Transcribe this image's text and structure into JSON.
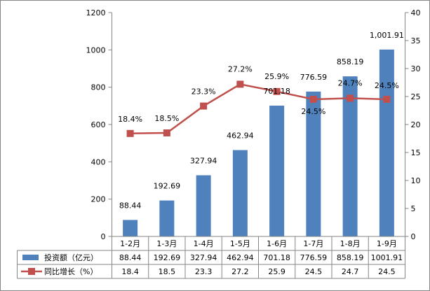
{
  "chart_data": {
    "type": "bar+line",
    "categories": [
      "1-2月",
      "1-3月",
      "1-4月",
      "1-5月",
      "1-6月",
      "1-7月",
      "1-8月",
      "1-9月"
    ],
    "series": [
      {
        "name": "投资额（亿元）",
        "kind": "bar",
        "axis": "left",
        "color": "#4F81BD",
        "values": [
          88.44,
          192.69,
          327.94,
          462.94,
          701.18,
          776.59,
          858.19,
          1001.91
        ],
        "labels": [
          "88.44",
          "192.69",
          "327.94",
          "462.94",
          "701.18",
          "776.59",
          "858.19",
          "1,001.91"
        ],
        "table_values": [
          "88.44",
          "192.69",
          "327.94",
          "462.94",
          "701.18",
          "776.59",
          "858.19",
          "1001.91"
        ]
      },
      {
        "name": "同比增长（%）",
        "kind": "line",
        "axis": "right",
        "color": "#C0504D",
        "values": [
          18.4,
          18.5,
          23.3,
          27.2,
          25.9,
          24.5,
          24.7,
          24.5
        ],
        "labels": [
          "18.4%",
          "18.5%",
          "23.3%",
          "27.2%",
          "25.9%",
          "24.5%",
          "24.7%",
          "24.5%"
        ],
        "table_values": [
          "18.4",
          "18.5",
          "23.3",
          "27.2",
          "25.9",
          "24.5",
          "24.7",
          "24.5"
        ]
      }
    ],
    "y_left": {
      "min": 0,
      "max": 1200,
      "ticks": [
        "0",
        "200",
        "400",
        "600",
        "800",
        "1000",
        "1200"
      ]
    },
    "y_right": {
      "min": 0,
      "max": 40,
      "ticks": [
        "0",
        "5",
        "10",
        "15",
        "20",
        "25",
        "30",
        "35",
        "40"
      ]
    },
    "data_table": true,
    "grid": false,
    "title": "",
    "xlabel": "",
    "ylabel": ""
  }
}
